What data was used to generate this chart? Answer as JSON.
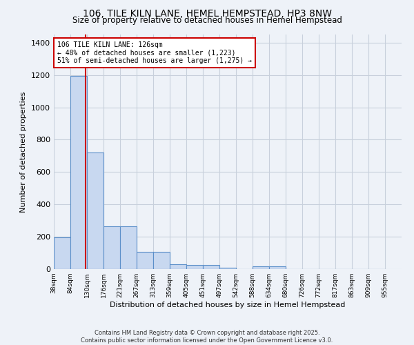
{
  "title": "106, TILE KILN LANE, HEMEL HEMPSTEAD, HP3 8NW",
  "subtitle": "Size of property relative to detached houses in Hemel Hempstead",
  "xlabel": "Distribution of detached houses by size in Hemel Hempstead",
  "ylabel": "Number of detached properties",
  "bin_edges": [
    38,
    84,
    130,
    176,
    221,
    267,
    313,
    359,
    405,
    451,
    497,
    542,
    588,
    634,
    680,
    726,
    772,
    817,
    863,
    909,
    955
  ],
  "bar_heights": [
    195,
    1195,
    720,
    265,
    265,
    105,
    105,
    30,
    25,
    25,
    8,
    0,
    15,
    15,
    0,
    0,
    0,
    0,
    0,
    0
  ],
  "bar_color": "#c8d8f0",
  "bar_edge_color": "#5b8fc9",
  "grid_color": "#c8d0dc",
  "bg_color": "#eef2f8",
  "red_line_x": 126,
  "annotation_title": "106 TILE KILN LANE: 126sqm",
  "annotation_line2": "← 48% of detached houses are smaller (1,223)",
  "annotation_line3": "51% of semi-detached houses are larger (1,275) →",
  "annotation_box_color": "#ffffff",
  "annotation_box_edge": "#cc0000",
  "red_line_color": "#cc0000",
  "ylim": [
    0,
    1450
  ],
  "yticks": [
    0,
    200,
    400,
    600,
    800,
    1000,
    1200,
    1400
  ],
  "footnote1": "Contains HM Land Registry data © Crown copyright and database right 2025.",
  "footnote2": "Contains public sector information licensed under the Open Government Licence v3.0."
}
